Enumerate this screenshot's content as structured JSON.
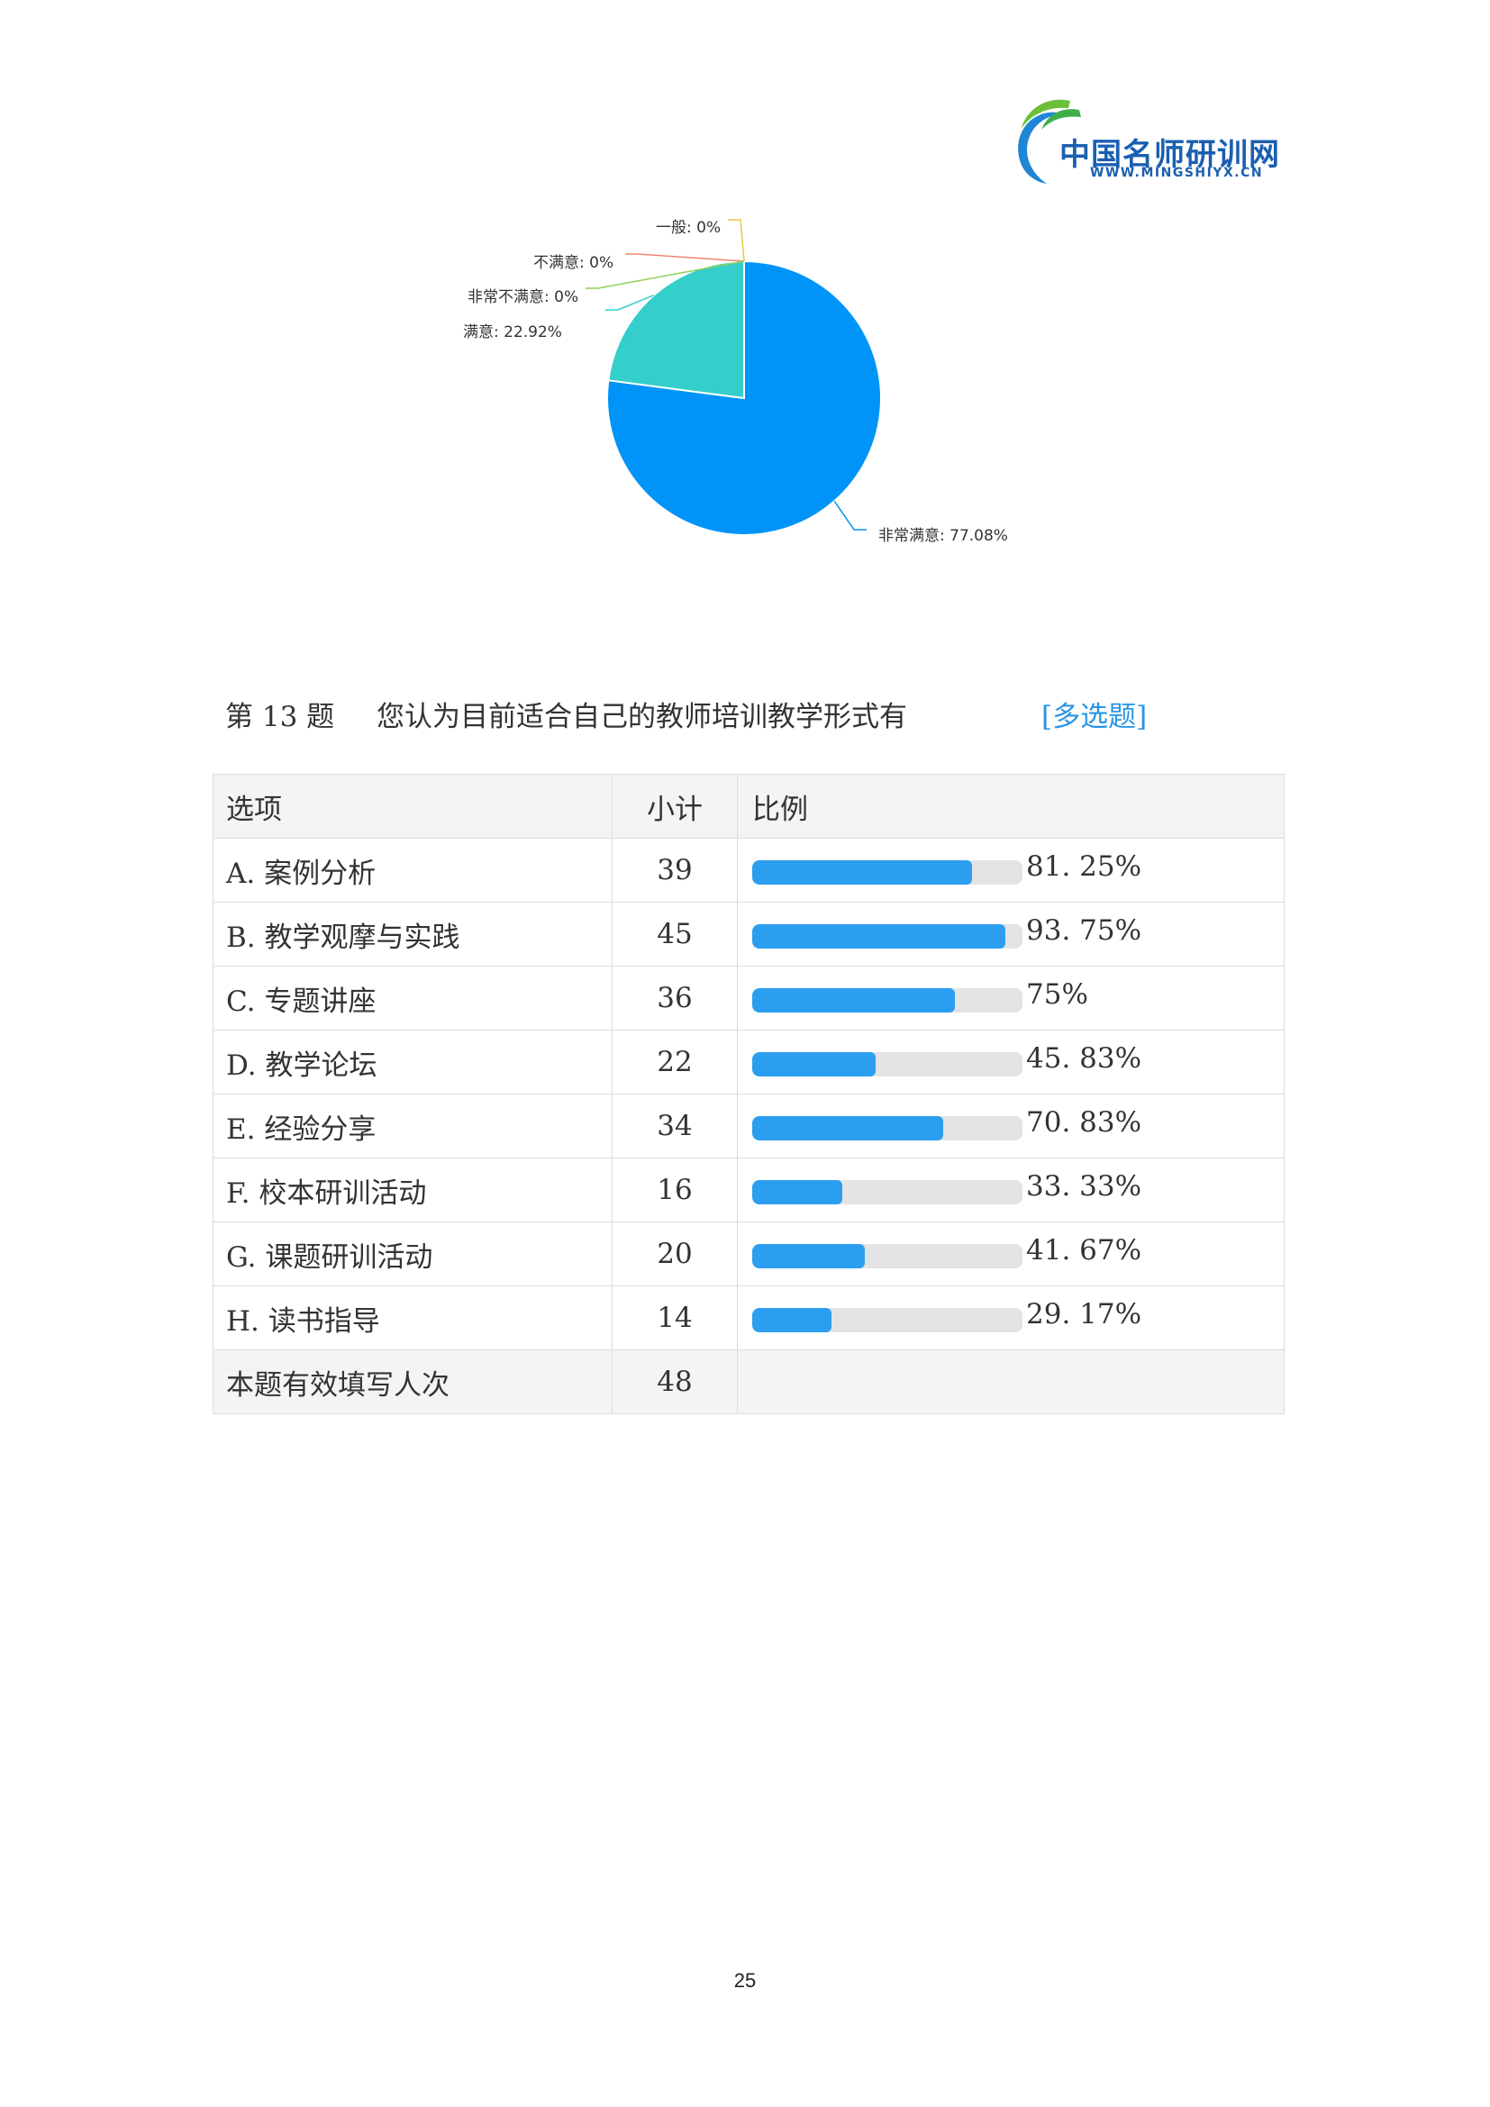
{
  "header": {
    "logo_cn": "中国名师研训网",
    "logo_en": "WWW.MINGSHIYX.CN"
  },
  "chart_data": {
    "type": "pie",
    "slices": [
      {
        "label": "非常满意",
        "value": 77.08,
        "color": "#0094f8",
        "text": "非常满意: 77.08%"
      },
      {
        "label": "满意",
        "value": 22.92,
        "color": "#34cfcb",
        "text": "满意: 22.92%"
      },
      {
        "label": "一般",
        "value": 0,
        "color": "#f0c64a",
        "text": "一般: 0%"
      },
      {
        "label": "不满意",
        "value": 0,
        "color": "#f0866b",
        "text": "不满意: 0%"
      },
      {
        "label": "非常不满意",
        "value": 0,
        "color": "#8fcf5a",
        "text": "非常不满意: 0%"
      }
    ]
  },
  "question": {
    "number": "第 13 题",
    "text": "您认为目前适合自己的教师培训教学形式有",
    "type": "[多选题]"
  },
  "table": {
    "headers": [
      "选项",
      "小计",
      "比例"
    ],
    "rows": [
      {
        "option": "A. 案例分析",
        "count": "39",
        "percent": 81.25,
        "percent_text": "81. 25%"
      },
      {
        "option": "B. 教学观摩与实践",
        "count": "45",
        "percent": 93.75,
        "percent_text": "93. 75%"
      },
      {
        "option": "C. 专题讲座",
        "count": "36",
        "percent": 75,
        "percent_text": "75%"
      },
      {
        "option": "D. 教学论坛",
        "count": "22",
        "percent": 45.83,
        "percent_text": "45. 83%"
      },
      {
        "option": "E. 经验分享",
        "count": "34",
        "percent": 70.83,
        "percent_text": "70. 83%"
      },
      {
        "option": "F. 校本研训活动",
        "count": "16",
        "percent": 33.33,
        "percent_text": "33. 33%"
      },
      {
        "option": "G. 课题研训活动",
        "count": "20",
        "percent": 41.67,
        "percent_text": "41. 67%"
      },
      {
        "option": "H. 读书指导",
        "count": "14",
        "percent": 29.17,
        "percent_text": "29. 17%"
      }
    ],
    "total_label": "本题有效填写人次",
    "total_count": "48"
  },
  "footer": {
    "page_number": "25"
  }
}
